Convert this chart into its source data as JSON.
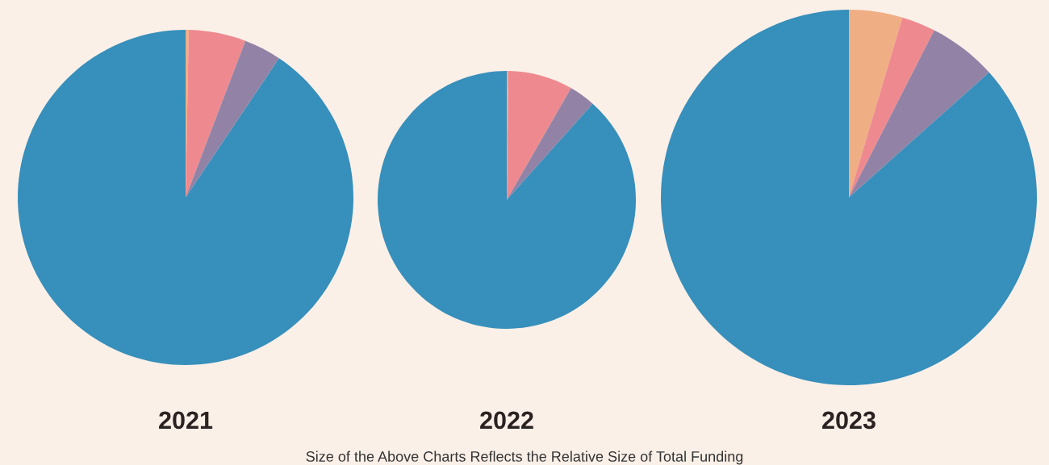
{
  "chart_data": [
    {
      "type": "pie",
      "title": "2021",
      "categories": [
        null,
        null,
        null,
        null
      ],
      "values": [
        0.3,
        5.5,
        3.6,
        90.6
      ],
      "colors": [
        "#f0ae84",
        "#ee8a8f",
        "#9283a6",
        "#378fbb"
      ]
    },
    {
      "type": "pie",
      "title": "2022",
      "categories": [
        null,
        null,
        null,
        null
      ],
      "values": [
        0.2,
        8.1,
        3.3,
        88.4
      ],
      "colors": [
        "#f0ae84",
        "#ee8a8f",
        "#9283a6",
        "#378fbb"
      ],
      "annotations": [
        "Size of the Above Charts Reflects the Relative Size of Total Funding"
      ]
    },
    {
      "type": "pie",
      "title": "2023",
      "categories": [
        null,
        null,
        null,
        null
      ],
      "values": [
        4.6,
        2.9,
        5.9,
        86.6
      ],
      "colors": [
        "#f0ae84",
        "#ee8a8f",
        "#9283a6",
        "#378fbb"
      ]
    }
  ]
}
